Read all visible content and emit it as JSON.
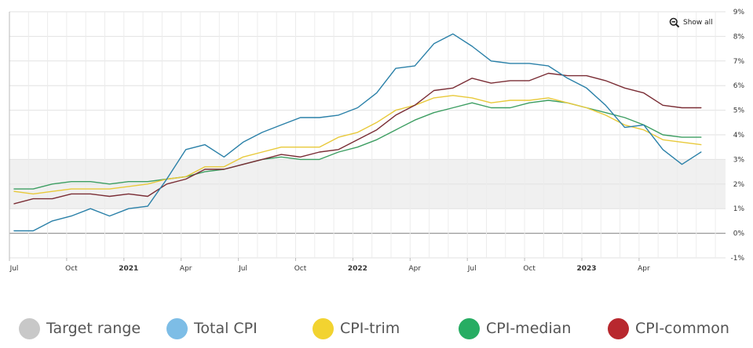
{
  "chart_data": {
    "type": "line",
    "title": "",
    "xlabel": "",
    "ylabel": "",
    "ylim": [
      -1,
      9
    ],
    "y_ticks": [
      "9%",
      "8%",
      "7%",
      "6%",
      "5%",
      "4%",
      "3%",
      "2%",
      "1%",
      "0%",
      "-1%"
    ],
    "x_ticks": [
      {
        "label": "Jul",
        "bold": false
      },
      {
        "label": "Oct",
        "bold": false
      },
      {
        "label": "2021",
        "bold": true
      },
      {
        "label": "Apr",
        "bold": false
      },
      {
        "label": "Jul",
        "bold": false
      },
      {
        "label": "Oct",
        "bold": false
      },
      {
        "label": "2022",
        "bold": true
      },
      {
        "label": "Apr",
        "bold": false
      },
      {
        "label": "Jul",
        "bold": false
      },
      {
        "label": "Oct",
        "bold": false
      },
      {
        "label": "2023",
        "bold": true
      },
      {
        "label": "Apr",
        "bold": false
      }
    ],
    "periods": [
      "2020-07",
      "2020-08",
      "2020-09",
      "2020-10",
      "2020-11",
      "2020-12",
      "2021-01",
      "2021-02",
      "2021-03",
      "2021-04",
      "2021-05",
      "2021-06",
      "2021-07",
      "2021-08",
      "2021-09",
      "2021-10",
      "2021-11",
      "2021-12",
      "2022-01",
      "2022-02",
      "2022-03",
      "2022-04",
      "2022-05",
      "2022-06",
      "2022-07",
      "2022-08",
      "2022-09",
      "2022-10",
      "2022-11",
      "2022-12",
      "2023-01",
      "2023-02",
      "2023-03",
      "2023-04",
      "2023-05",
      "2023-06",
      "2023-07"
    ],
    "target_range": [
      1,
      3
    ],
    "series": [
      {
        "name": "Total CPI",
        "color": "#2a80a8",
        "values": [
          0.1,
          0.1,
          0.5,
          0.7,
          1.0,
          0.7,
          1.0,
          1.1,
          2.2,
          3.4,
          3.6,
          3.1,
          3.7,
          4.1,
          4.4,
          4.7,
          4.7,
          4.8,
          5.1,
          5.7,
          6.7,
          6.8,
          7.7,
          8.1,
          7.6,
          7.0,
          6.9,
          6.9,
          6.8,
          6.3,
          5.9,
          5.2,
          4.3,
          4.4,
          3.4,
          2.8,
          3.3
        ]
      },
      {
        "name": "CPI-trim",
        "color": "#e8c93a",
        "values": [
          1.7,
          1.6,
          1.7,
          1.8,
          1.8,
          1.8,
          1.9,
          2.0,
          2.2,
          2.3,
          2.7,
          2.7,
          3.1,
          3.3,
          3.5,
          3.5,
          3.5,
          3.9,
          4.1,
          4.5,
          5.0,
          5.2,
          5.5,
          5.6,
          5.5,
          5.3,
          5.4,
          5.4,
          5.5,
          5.3,
          5.1,
          4.8,
          4.4,
          4.2,
          3.8,
          3.7,
          3.6
        ]
      },
      {
        "name": "CPI-median",
        "color": "#3d9e62",
        "values": [
          1.8,
          1.8,
          2.0,
          2.1,
          2.1,
          2.0,
          2.1,
          2.1,
          2.2,
          2.3,
          2.5,
          2.6,
          2.8,
          3.0,
          3.1,
          3.0,
          3.0,
          3.3,
          3.5,
          3.8,
          4.2,
          4.6,
          4.9,
          5.1,
          5.3,
          5.1,
          5.1,
          5.3,
          5.4,
          5.3,
          5.1,
          4.9,
          4.7,
          4.4,
          4.0,
          3.9,
          3.9
        ]
      },
      {
        "name": "CPI-common",
        "color": "#7a2d35",
        "values": [
          1.2,
          1.4,
          1.4,
          1.6,
          1.6,
          1.5,
          1.6,
          1.5,
          2.0,
          2.2,
          2.6,
          2.6,
          2.8,
          3.0,
          3.2,
          3.1,
          3.3,
          3.4,
          3.8,
          4.2,
          4.8,
          5.2,
          5.8,
          5.9,
          6.3,
          6.1,
          6.2,
          6.2,
          6.5,
          6.4,
          6.4,
          6.2,
          5.9,
          5.7,
          5.2,
          5.1,
          5.1
        ]
      }
    ],
    "legend": [
      {
        "name": "Target range",
        "color": "#c8c8c8"
      },
      {
        "name": "Total CPI",
        "color": "#7dbde6"
      },
      {
        "name": "CPI-trim",
        "color": "#f2d330"
      },
      {
        "name": "CPI-median",
        "color": "#27ad63"
      },
      {
        "name": "CPI-common",
        "color": "#b8282e"
      }
    ],
    "legend_position": "bottom",
    "grid": true
  },
  "controls": {
    "show_all_label": "Show all",
    "show_all_icon": "zoom-out-icon"
  }
}
